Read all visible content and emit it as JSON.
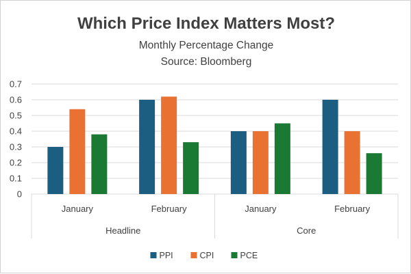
{
  "chart_data": {
    "type": "bar",
    "title": "Which Price Index Matters Most?",
    "subtitle_lines": [
      "Monthly Percentage Change",
      "Source: Bloomberg"
    ],
    "groups": [
      "Headline",
      "Core"
    ],
    "categories": [
      "January",
      "February",
      "January",
      "February"
    ],
    "category_groups": [
      "Headline",
      "Headline",
      "Core",
      "Core"
    ],
    "series": [
      {
        "name": "PPI",
        "color": "#1b5e82",
        "values": [
          0.3,
          0.6,
          0.4,
          0.6
        ]
      },
      {
        "name": "CPI",
        "color": "#e97132",
        "values": [
          0.54,
          0.62,
          0.4,
          0.4
        ]
      },
      {
        "name": "PCE",
        "color": "#1a7a33",
        "values": [
          0.38,
          0.33,
          0.45,
          0.26
        ]
      }
    ],
    "ylim": [
      0,
      0.7
    ],
    "yticks": [
      "0",
      "0.1",
      "0.2",
      "0.3",
      "0.4",
      "0.5",
      "0.6",
      "0.7"
    ],
    "grid": true,
    "legend_position": "bottom"
  }
}
